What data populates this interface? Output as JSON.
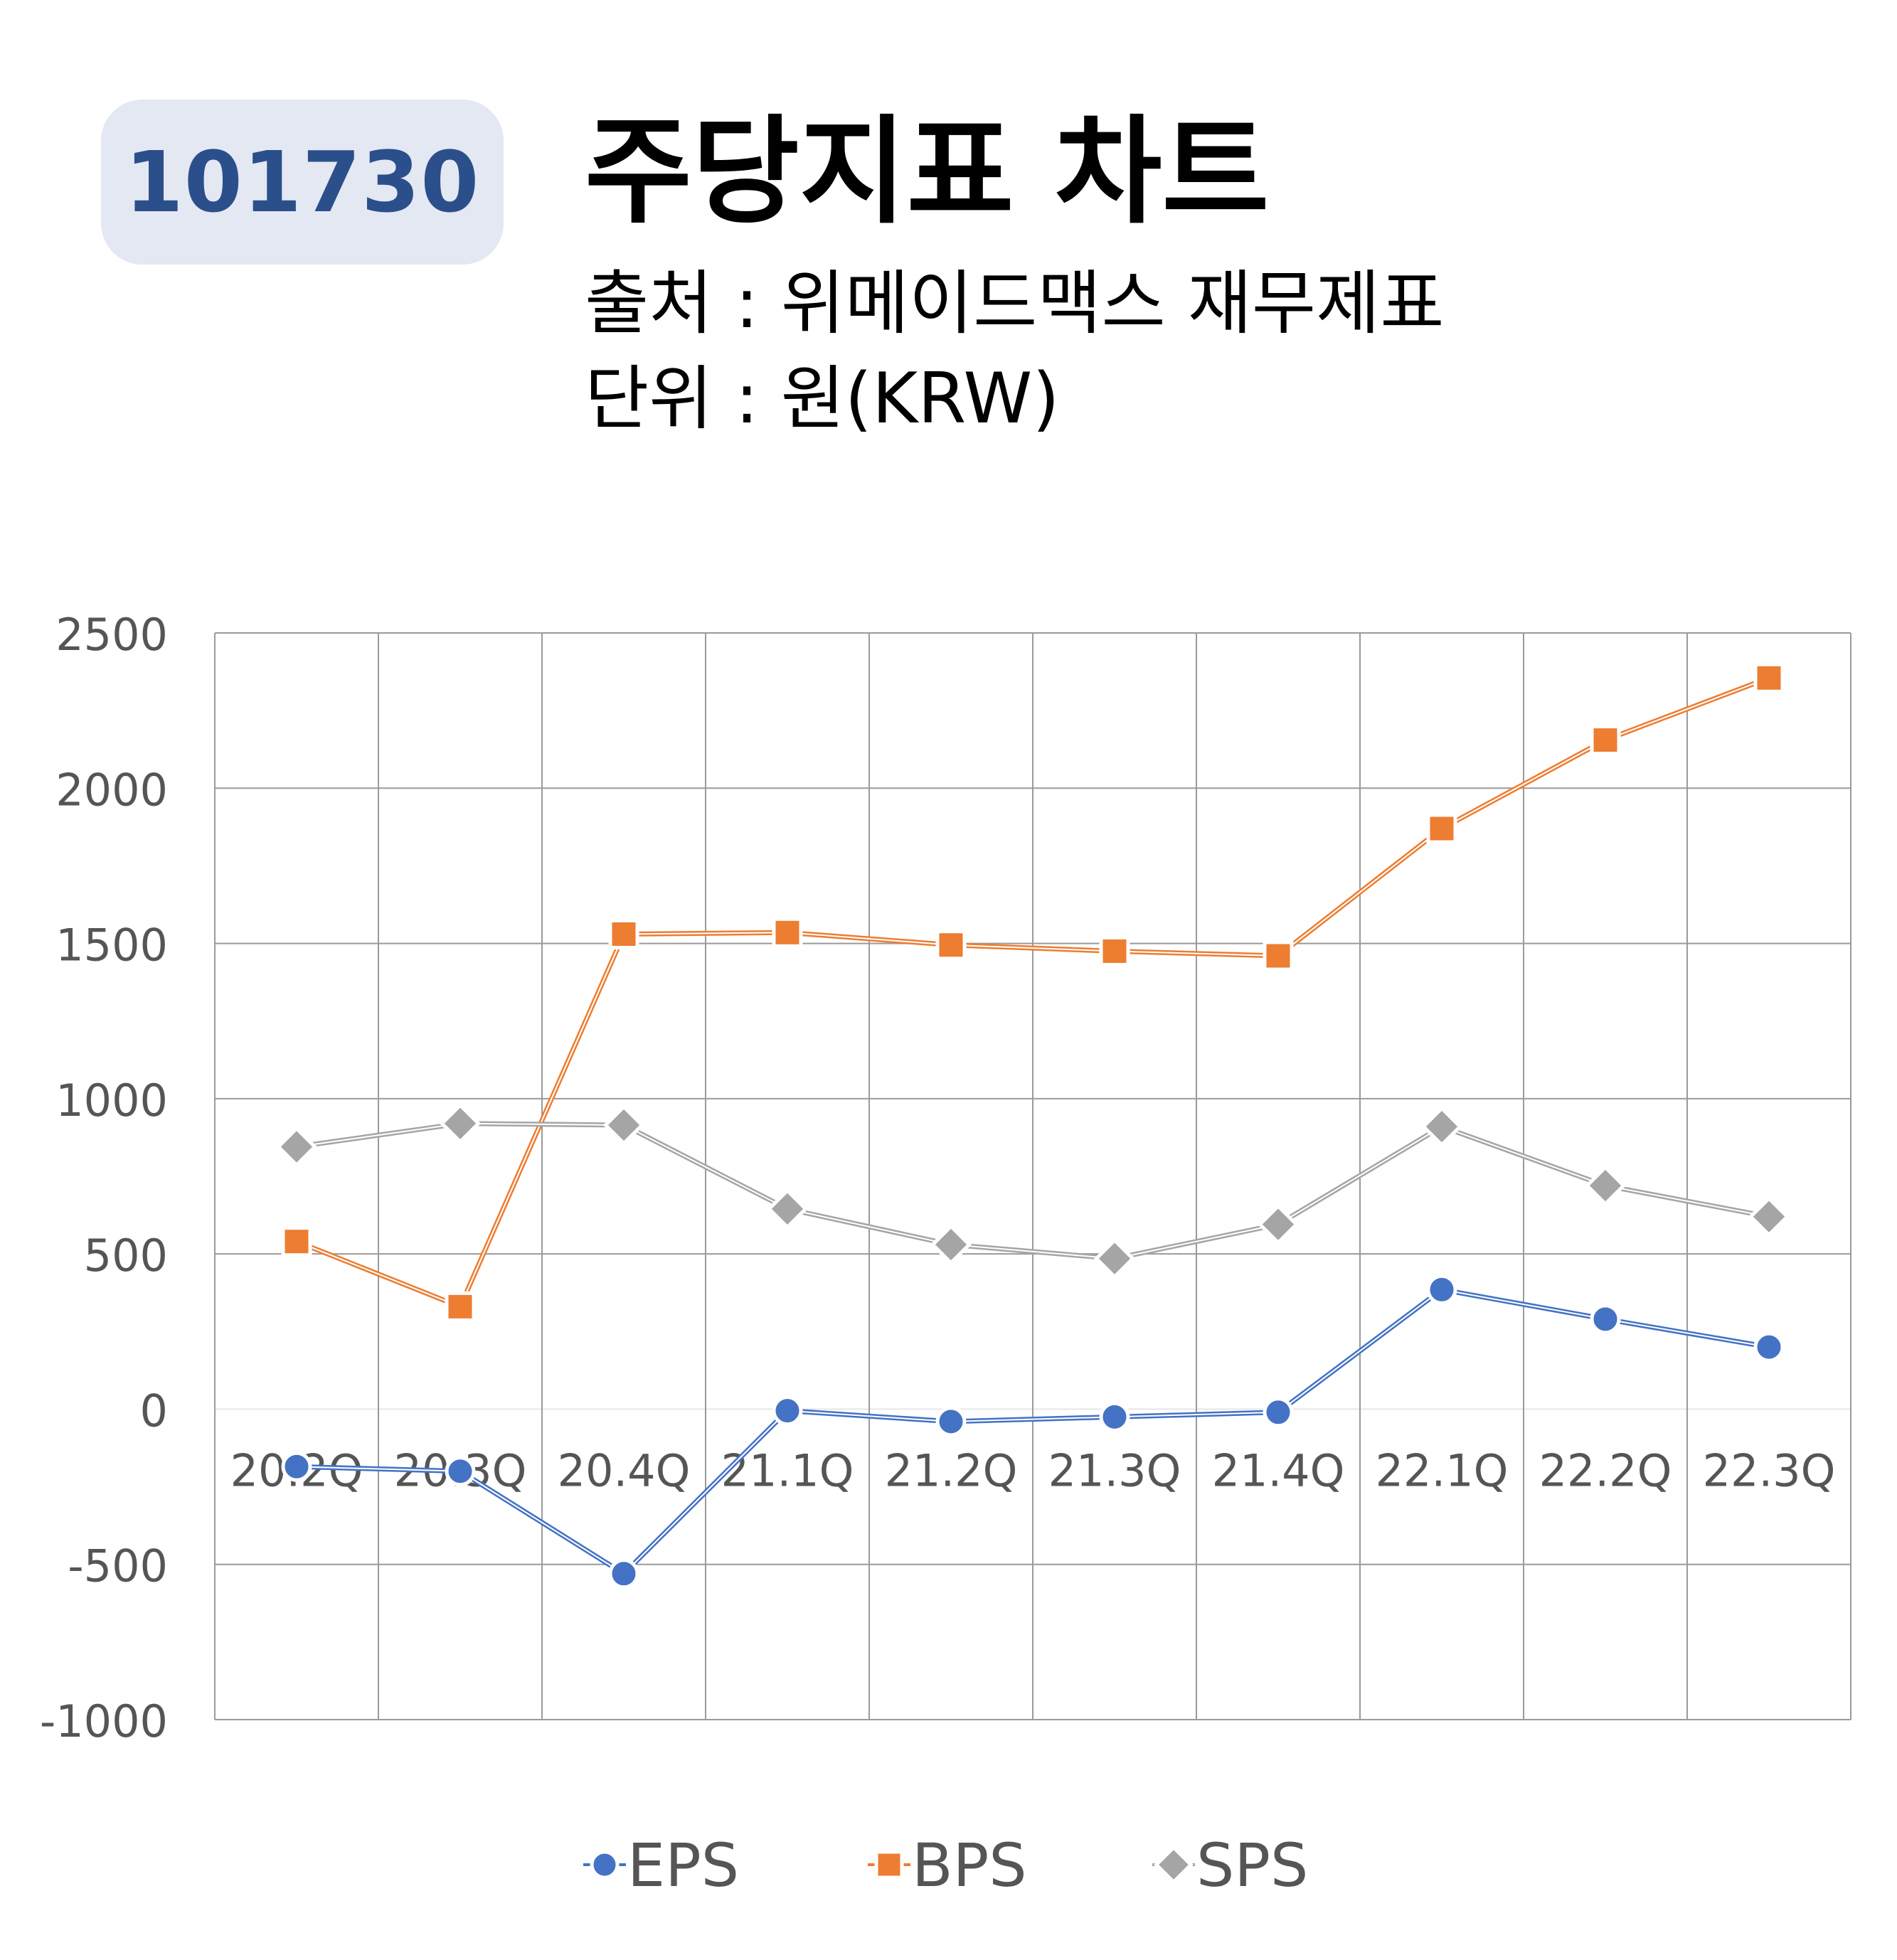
{
  "header": {
    "ticker": "101730",
    "title": "주당지표 차트",
    "source": "출처 : 위메이드맥스 재무제표",
    "unit": "단위 : 원(KRW)"
  },
  "chart_data": {
    "type": "line",
    "categories": [
      "20.2Q",
      "20.3Q",
      "20.4Q",
      "21.1Q",
      "21.2Q",
      "21.3Q",
      "21.4Q",
      "22.1Q",
      "22.2Q",
      "22.3Q"
    ],
    "series": [
      {
        "name": "EPS",
        "color": "#4472c4",
        "marker": "circle",
        "values": [
          -185,
          -200,
          -530,
          -5,
          -40,
          -25,
          -10,
          385,
          290,
          200
        ]
      },
      {
        "name": "BPS",
        "color": "#ed7d31",
        "marker": "square",
        "values": [
          540,
          330,
          1530,
          1535,
          1495,
          1475,
          1460,
          1870,
          2155,
          2355
        ]
      },
      {
        "name": "SPS",
        "color": "#a5a5a5",
        "marker": "diamond",
        "values": [
          845,
          920,
          915,
          645,
          530,
          485,
          595,
          910,
          720,
          620
        ]
      }
    ],
    "ylim": [
      -1000,
      2500
    ],
    "yticks": [
      "2500",
      "2000",
      "1500",
      "1000",
      "500",
      "0",
      "-500",
      "-1000"
    ],
    "grid": true,
    "legend_position": "bottom"
  }
}
